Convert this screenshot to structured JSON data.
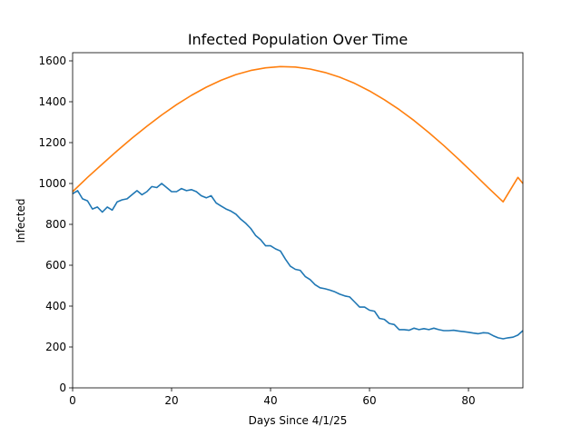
{
  "chart_data": {
    "type": "line",
    "title": "Infected Population Over Time",
    "xlabel": "Days Since 4/1/25",
    "ylabel": "Infected",
    "xlim": [
      0,
      91
    ],
    "ylim": [
      0,
      1640
    ],
    "xticks": [
      0,
      20,
      40,
      60,
      80
    ],
    "yticks": [
      0,
      200,
      400,
      600,
      800,
      1000,
      1200,
      1400,
      1600
    ],
    "grid": false,
    "series": [
      {
        "color": "#1f77b4",
        "x": [
          0,
          1,
          2,
          3,
          4,
          5,
          6,
          7,
          8,
          9,
          10,
          11,
          12,
          13,
          14,
          15,
          16,
          17,
          18,
          19,
          20,
          21,
          22,
          23,
          24,
          25,
          26,
          27,
          28,
          29,
          30,
          31,
          32,
          33,
          34,
          35,
          36,
          37,
          38,
          39,
          40,
          41,
          42,
          43,
          44,
          45,
          46,
          47,
          48,
          49,
          50,
          51,
          52,
          53,
          54,
          55,
          56,
          57,
          58,
          59,
          60,
          61,
          62,
          63,
          64,
          65,
          66,
          67,
          68,
          69,
          70,
          71,
          72,
          73,
          74,
          75,
          76,
          77,
          78,
          79,
          80,
          81,
          82,
          83,
          84,
          85,
          86,
          87,
          88,
          89,
          90,
          91
        ],
        "values": [
          950,
          965,
          925,
          915,
          875,
          885,
          860,
          885,
          870,
          910,
          920,
          925,
          945,
          965,
          945,
          960,
          985,
          980,
          1000,
          980,
          960,
          960,
          975,
          965,
          970,
          960,
          940,
          930,
          940,
          905,
          890,
          875,
          865,
          850,
          825,
          805,
          780,
          745,
          725,
          695,
          695,
          680,
          670,
          630,
          595,
          580,
          575,
          545,
          530,
          505,
          490,
          485,
          478,
          470,
          458,
          450,
          445,
          420,
          395,
          395,
          380,
          375,
          340,
          335,
          315,
          310,
          285,
          285,
          282,
          292,
          285,
          290,
          285,
          292,
          285,
          280,
          280,
          282,
          278,
          275,
          272,
          268,
          265,
          270,
          268,
          255,
          245,
          240,
          245,
          248,
          258,
          280
        ]
      },
      {
        "color": "#ff7f0e",
        "x": [
          0,
          3,
          6,
          9,
          12,
          15,
          18,
          21,
          24,
          27,
          30,
          33,
          36,
          39,
          42,
          45,
          48,
          51,
          54,
          57,
          60,
          63,
          66,
          69,
          72,
          75,
          78,
          81,
          84,
          87,
          90,
          91
        ],
        "values": [
          960,
          1030,
          1095,
          1160,
          1222,
          1280,
          1335,
          1386,
          1431,
          1471,
          1505,
          1533,
          1553,
          1566,
          1572,
          1570,
          1560,
          1543,
          1520,
          1490,
          1453,
          1410,
          1362,
          1308,
          1249,
          1186,
          1119,
          1050,
          979,
          910,
          1030,
          1000
        ]
      }
    ]
  }
}
